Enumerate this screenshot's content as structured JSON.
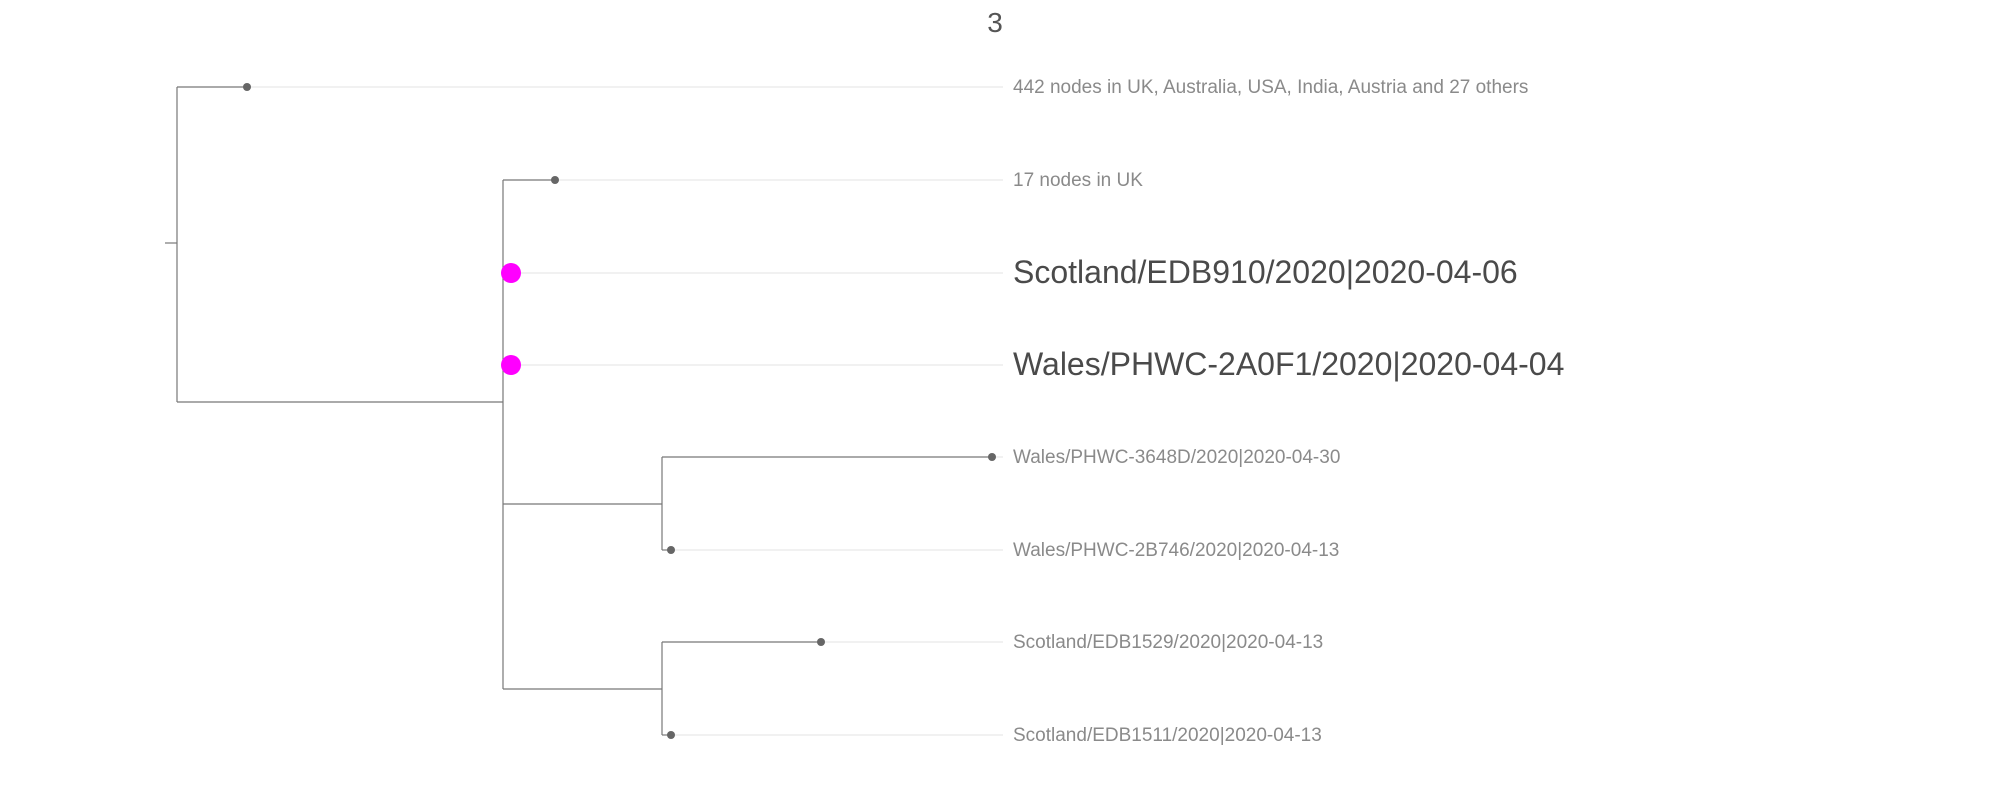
{
  "title": "3",
  "colors": {
    "highlight": "#ff00ff",
    "node": "#666666",
    "branch": "#777777",
    "guide": "#e3e3e3"
  },
  "tree": {
    "tips": [
      {
        "id": "t1",
        "label": "442 nodes in UK, Australia, USA, India, Austria and 27 others",
        "highlight": false
      },
      {
        "id": "t2",
        "label": "17 nodes in UK",
        "highlight": false
      },
      {
        "id": "t3",
        "label": "Scotland/EDB910/2020|2020-04-06",
        "highlight": true
      },
      {
        "id": "t4",
        "label": "Wales/PHWC-2A0F1/2020|2020-04-04",
        "highlight": true
      },
      {
        "id": "t5",
        "label": "Wales/PHWC-3648D/2020|2020-04-30",
        "highlight": false
      },
      {
        "id": "t6",
        "label": "Wales/PHWC-2B746/2020|2020-04-13",
        "highlight": false
      },
      {
        "id": "t7",
        "label": "Scotland/EDB1529/2020|2020-04-13",
        "highlight": false
      },
      {
        "id": "t8",
        "label": "Scotland/EDB1511/2020|2020-04-13",
        "highlight": false
      }
    ],
    "clades": [
      {
        "id": "root",
        "children": [
          "t1",
          "c1"
        ]
      },
      {
        "id": "c1",
        "children": [
          "t2",
          "t3",
          "t4",
          "c2",
          "c3"
        ]
      },
      {
        "id": "c2",
        "children": [
          "t5",
          "t6"
        ]
      },
      {
        "id": "c3",
        "children": [
          "t7",
          "t8"
        ]
      }
    ]
  }
}
